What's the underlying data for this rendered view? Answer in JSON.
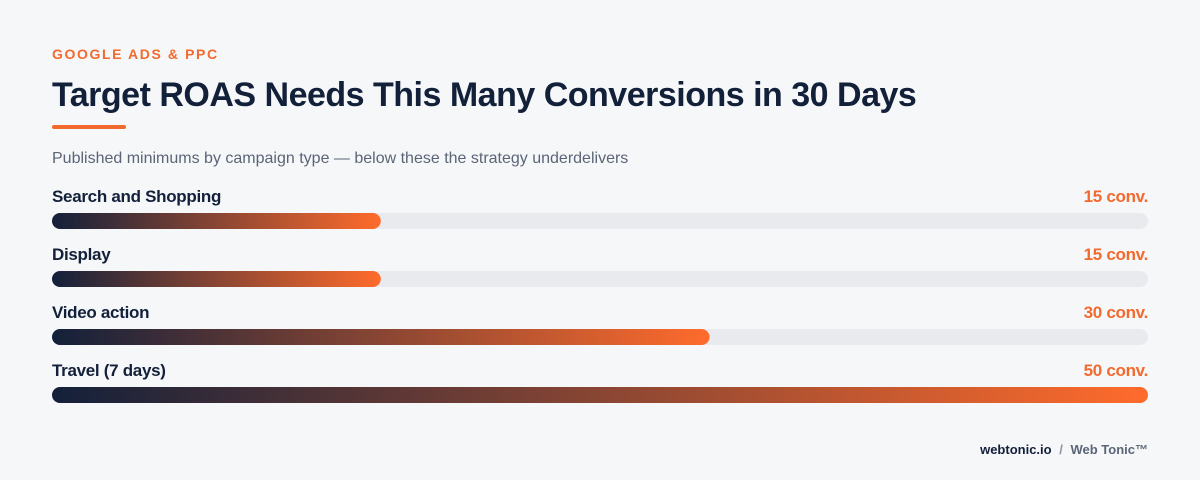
{
  "chart_data": {
    "type": "bar",
    "orientation": "horizontal",
    "eyebrow": "GOOGLE ADS & PPC",
    "title": "Target ROAS Needs This Many Conversions in 30 Days",
    "subtitle": "Published minimums by campaign type — below these the strategy underdelivers",
    "categories": [
      "Search and Shopping",
      "Display",
      "Video action",
      "Travel (7 days)"
    ],
    "values": [
      15,
      15,
      30,
      50
    ],
    "value_labels": [
      "15 conv.",
      "15 conv.",
      "30 conv.",
      "50 conv."
    ],
    "xlim": [
      0,
      50
    ],
    "gradient": {
      "from": "#13203a",
      "to": "#ff6b2c"
    },
    "track_color": "#e8eaee",
    "accent_color": "#f26a2e",
    "footer": {
      "site": "webtonic.io",
      "separator": "/",
      "brand": "Web Tonic™"
    }
  }
}
